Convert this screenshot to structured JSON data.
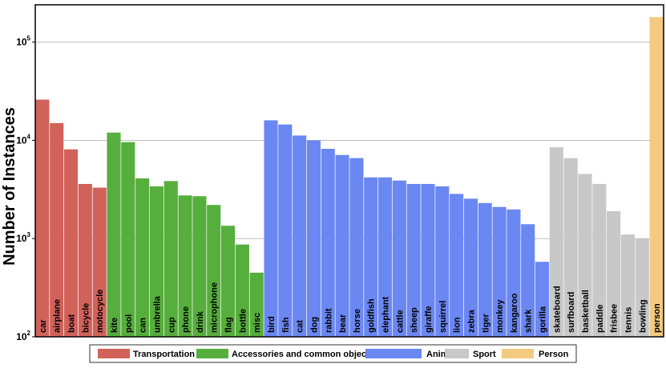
{
  "chart_data": {
    "type": "bar",
    "yscale": "log",
    "ylabel": "Number of Instances",
    "xlabel": "",
    "ylim": [
      100,
      240000
    ],
    "yticks": [
      {
        "value": 100,
        "base": "10",
        "exp": "2"
      },
      {
        "value": 1000,
        "base": "10",
        "exp": "3"
      },
      {
        "value": 10000,
        "base": "10",
        "exp": "4"
      },
      {
        "value": 100000,
        "base": "10",
        "exp": "5"
      }
    ],
    "grid": "horizontal",
    "legend_position": "bottom",
    "groups": [
      {
        "name": "Transportation",
        "color": "#d1625a"
      },
      {
        "name": "Accessories and common object",
        "color": "#56ae3c"
      },
      {
        "name": "Animal",
        "color": "#6b87f2"
      },
      {
        "name": "Sport",
        "color": "#c8c8c8"
      },
      {
        "name": "Person",
        "color": "#f3ca7f"
      }
    ],
    "bars": [
      {
        "category": "car",
        "value": 26000,
        "group": 0
      },
      {
        "category": "airplane",
        "value": 15000,
        "group": 0
      },
      {
        "category": "boat",
        "value": 8100,
        "group": 0
      },
      {
        "category": "bicycle",
        "value": 3600,
        "group": 0
      },
      {
        "category": "motocycle",
        "value": 3300,
        "group": 0
      },
      {
        "category": "kite",
        "value": 12000,
        "group": 1
      },
      {
        "category": "pool",
        "value": 9600,
        "group": 1
      },
      {
        "category": "can",
        "value": 4100,
        "group": 1
      },
      {
        "category": "umbrella",
        "value": 3400,
        "group": 1
      },
      {
        "category": "cup",
        "value": 3850,
        "group": 1
      },
      {
        "category": "phone",
        "value": 2750,
        "group": 1
      },
      {
        "category": "drink",
        "value": 2700,
        "group": 1
      },
      {
        "category": "microphone",
        "value": 2200,
        "group": 1
      },
      {
        "category": "flag",
        "value": 1350,
        "group": 1
      },
      {
        "category": "bottle",
        "value": 870,
        "group": 1
      },
      {
        "category": "misc",
        "value": 450,
        "group": 1
      },
      {
        "category": "bird",
        "value": 16000,
        "group": 2
      },
      {
        "category": "fish",
        "value": 14500,
        "group": 2
      },
      {
        "category": "cat",
        "value": 11200,
        "group": 2
      },
      {
        "category": "dog",
        "value": 10000,
        "group": 2
      },
      {
        "category": "rabbit",
        "value": 8200,
        "group": 2
      },
      {
        "category": "bear",
        "value": 7100,
        "group": 2
      },
      {
        "category": "horse",
        "value": 6600,
        "group": 2
      },
      {
        "category": "goldfish",
        "value": 4200,
        "group": 2
      },
      {
        "category": "elephant",
        "value": 4200,
        "group": 2
      },
      {
        "category": "cattle",
        "value": 3900,
        "group": 2
      },
      {
        "category": "sheep",
        "value": 3600,
        "group": 2
      },
      {
        "category": "giraffe",
        "value": 3600,
        "group": 2
      },
      {
        "category": "squirrel",
        "value": 3400,
        "group": 2
      },
      {
        "category": "lion",
        "value": 2850,
        "group": 2
      },
      {
        "category": "zebra",
        "value": 2550,
        "group": 2
      },
      {
        "category": "tiger",
        "value": 2300,
        "group": 2
      },
      {
        "category": "monkey",
        "value": 2100,
        "group": 2
      },
      {
        "category": "kangaroo",
        "value": 1980,
        "group": 2
      },
      {
        "category": "shark",
        "value": 1400,
        "group": 2
      },
      {
        "category": "gorilla",
        "value": 580,
        "group": 2
      },
      {
        "category": "skateboard",
        "value": 8500,
        "group": 3
      },
      {
        "category": "surfboard",
        "value": 6600,
        "group": 3
      },
      {
        "category": "basketball",
        "value": 4550,
        "group": 3
      },
      {
        "category": "paddle",
        "value": 3600,
        "group": 3
      },
      {
        "category": "frisbee",
        "value": 1900,
        "group": 3
      },
      {
        "category": "tennis",
        "value": 1100,
        "group": 3
      },
      {
        "category": "bowling",
        "value": 1000,
        "group": 3
      },
      {
        "category": "person",
        "value": 180000,
        "group": 4
      }
    ]
  }
}
